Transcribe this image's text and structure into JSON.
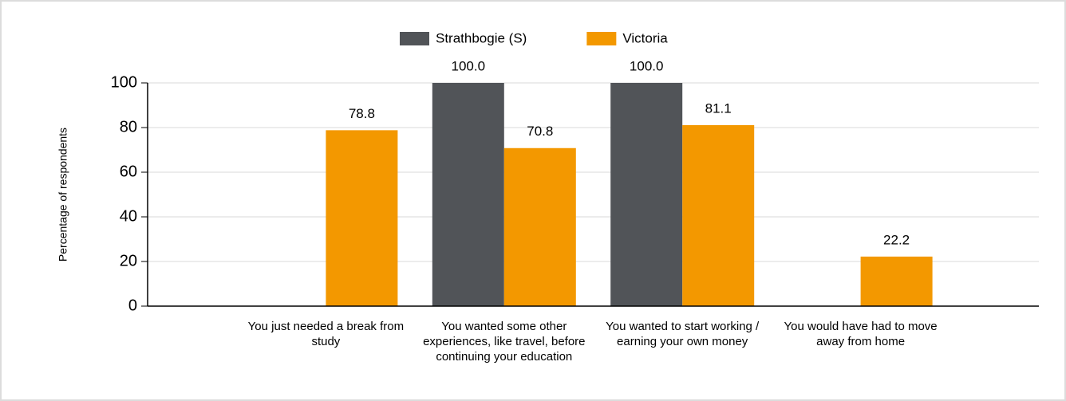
{
  "chart_data": {
    "type": "bar",
    "categories": [
      "You just needed a break from study",
      "You wanted some other experiences, like travel, before continuing your education",
      "You wanted to start working / earning your own money",
      "You would have had to move away from home"
    ],
    "series": [
      {
        "name": "Strathbogie (S)",
        "color": "#515458",
        "values": [
          null,
          100,
          100,
          null
        ],
        "value_labels": [
          null,
          "100.0",
          "100.0",
          null
        ]
      },
      {
        "name": "Victoria",
        "color": "#f39800",
        "values": [
          78.8,
          70.8,
          81.1,
          22.2
        ],
        "value_labels": [
          "78.8",
          "70.8",
          "81.1",
          "22.2"
        ]
      }
    ],
    "ylabel": "Percentage of respondents",
    "ylim": [
      0,
      100
    ],
    "yticks": [
      0,
      20,
      40,
      60,
      80,
      100
    ],
    "grid": true,
    "legend": "top"
  }
}
